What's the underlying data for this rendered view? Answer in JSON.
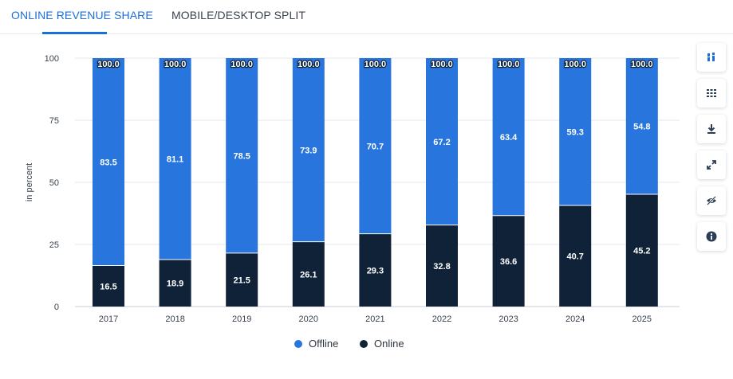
{
  "tabs": [
    {
      "label": "ONLINE REVENUE SHARE"
    },
    {
      "label": "MOBILE/DESKTOP SPLIT"
    }
  ],
  "toolbar": [
    {
      "icon": "bar-chart-icon"
    },
    {
      "icon": "table-icon"
    },
    {
      "icon": "download-icon"
    },
    {
      "icon": "fullscreen-icon"
    },
    {
      "icon": "hide-icon"
    },
    {
      "icon": "info-icon"
    }
  ],
  "colors": {
    "offline": "#2876dd",
    "online": "#0f2238",
    "accent": "#1b6fd8"
  },
  "legend": [
    {
      "label": "Offline",
      "color": "#2876dd"
    },
    {
      "label": "Online",
      "color": "#0f2238"
    }
  ],
  "chart_data": {
    "type": "bar",
    "stacked": true,
    "title": "",
    "xlabel": "",
    "ylabel": "in percent",
    "ylim": [
      0,
      100
    ],
    "yticks": [
      0,
      25,
      50,
      75,
      100
    ],
    "grid": true,
    "legend_position": "bottom-center",
    "categories": [
      "2017",
      "2018",
      "2019",
      "2020",
      "2021",
      "2022",
      "2023",
      "2024",
      "2025"
    ],
    "series": [
      {
        "name": "Online",
        "values": [
          16.5,
          18.9,
          21.5,
          26.1,
          29.3,
          32.8,
          36.6,
          40.7,
          45.2
        ]
      },
      {
        "name": "Offline",
        "values": [
          83.5,
          81.1,
          78.5,
          73.9,
          70.7,
          67.2,
          63.4,
          59.3,
          54.8
        ]
      }
    ],
    "total_labels": [
      "100.0",
      "100.0",
      "100.0",
      "100.0",
      "100.0",
      "100.0",
      "100.0",
      "100.0",
      "100.0"
    ]
  }
}
